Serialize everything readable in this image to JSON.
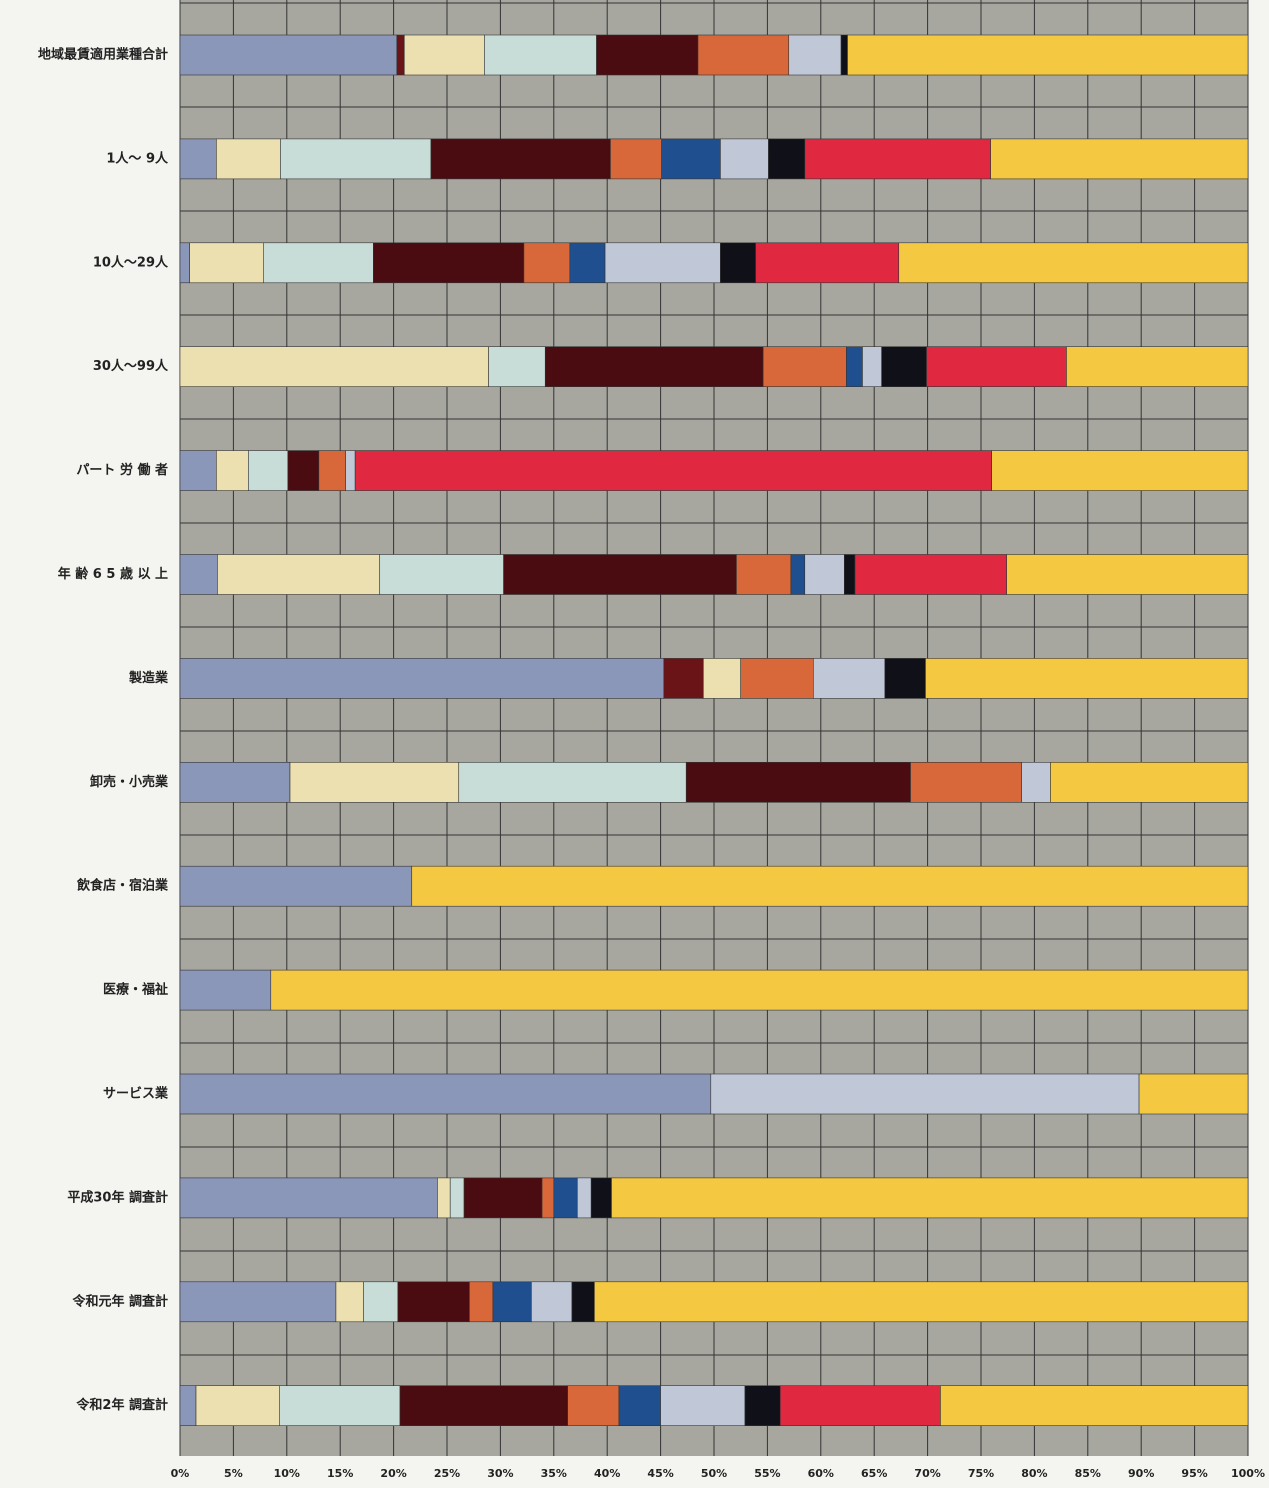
{
  "chart_data": {
    "type": "stacked_barh",
    "categories": [
      "地域最賃適用業種合計",
      "1人～ 9人",
      "10人～29人",
      "30人～99人",
      "パート 労 働 者",
      "年 齢 6 5 歳 以 上",
      "製造業",
      "卸売・小売業",
      "飲食店・宿泊業",
      "医療・福祉",
      "サービス業",
      "平成30年 調査計",
      "令和元年 調査計",
      "令和2年 調査計"
    ],
    "series": [
      {
        "color": "#8b97b8",
        "values": [
          20.3,
          3.4,
          0.9,
          0,
          3.4,
          3.5,
          45.3,
          10.3,
          21.7,
          8.5,
          49.7,
          24.1,
          14.6,
          1.5
        ]
      },
      {
        "color": "#6a1418",
        "values": [
          0.7,
          0,
          0,
          0,
          0,
          0,
          3.7,
          0,
          0,
          0,
          0,
          0,
          0,
          0
        ]
      },
      {
        "color": "#ecdfb0",
        "values": [
          7.5,
          6.0,
          6.9,
          28.9,
          3.0,
          15.2,
          3.5,
          15.8,
          0,
          0,
          0,
          1.2,
          2.6,
          7.8
        ]
      },
      {
        "color": "#c8dcd8",
        "values": [
          10.5,
          14.1,
          10.3,
          5.3,
          3.7,
          11.6,
          0,
          21.3,
          0,
          0,
          0,
          1.3,
          3.2,
          11.3
        ]
      },
      {
        "color": "#4a0c10",
        "values": [
          9.5,
          16.8,
          14.1,
          20.4,
          2.9,
          21.8,
          0,
          21.0,
          0,
          0,
          0,
          7.3,
          6.7,
          15.7
        ]
      },
      {
        "color": "#d8683a",
        "values": [
          8.5,
          4.8,
          4.3,
          7.8,
          2.5,
          5.1,
          6.8,
          10.4,
          0,
          0,
          0,
          1.1,
          2.2,
          4.8
        ]
      },
      {
        "color": "#1f4f8f",
        "values": [
          0,
          5.5,
          3.3,
          1.5,
          0,
          1.3,
          0,
          0,
          0,
          0,
          0,
          2.2,
          3.6,
          3.9
        ]
      },
      {
        "color": "#c0c8d8",
        "values": [
          4.9,
          4.5,
          10.8,
          1.8,
          0.9,
          3.7,
          6.7,
          2.7,
          0,
          0,
          40.1,
          1.3,
          3.8,
          7.9
        ]
      },
      {
        "color": "#101018",
        "values": [
          0.6,
          3.4,
          3.3,
          4.2,
          0,
          1.0,
          3.8,
          0,
          0,
          0,
          0,
          1.9,
          2.1,
          3.3
        ]
      },
      {
        "color": "#e02840",
        "values": [
          0,
          17.4,
          13.4,
          13.1,
          59.6,
          14.2,
          0,
          0,
          0,
          0,
          0,
          0,
          0,
          15.0
        ]
      },
      {
        "color": "#f5c842",
        "values": [
          37.5,
          24.1,
          32.7,
          17.0,
          24.0,
          22.6,
          30.2,
          18.5,
          78.3,
          91.5,
          10.2,
          59.6,
          61.2,
          28.8
        ]
      }
    ],
    "xlim": [
      0,
      100
    ],
    "xticks": [
      {
        "value": 0,
        "label": "0%"
      },
      {
        "value": 5,
        "label": "5%"
      },
      {
        "value": 10,
        "label": "10%"
      },
      {
        "value": 15,
        "label": "15%"
      },
      {
        "value": 20,
        "label": "20%"
      },
      {
        "value": 25,
        "label": "25%"
      },
      {
        "value": 30,
        "label": "30%"
      },
      {
        "value": 35,
        "label": "35%"
      },
      {
        "value": 40,
        "label": "40%"
      },
      {
        "value": 45,
        "label": "45%"
      },
      {
        "value": 50,
        "label": "50%"
      },
      {
        "value": 55,
        "label": "55%"
      },
      {
        "value": 60,
        "label": "60%"
      },
      {
        "value": 65,
        "label": "65%"
      },
      {
        "value": 70,
        "label": "70%"
      },
      {
        "value": 75,
        "label": "75%"
      },
      {
        "value": 80,
        "label": "80%"
      },
      {
        "value": 85,
        "label": "85%"
      },
      {
        "value": 90,
        "label": "90%"
      },
      {
        "value": 95,
        "label": "95%"
      },
      {
        "value": 100,
        "label": "100%"
      }
    ],
    "grid": true
  }
}
